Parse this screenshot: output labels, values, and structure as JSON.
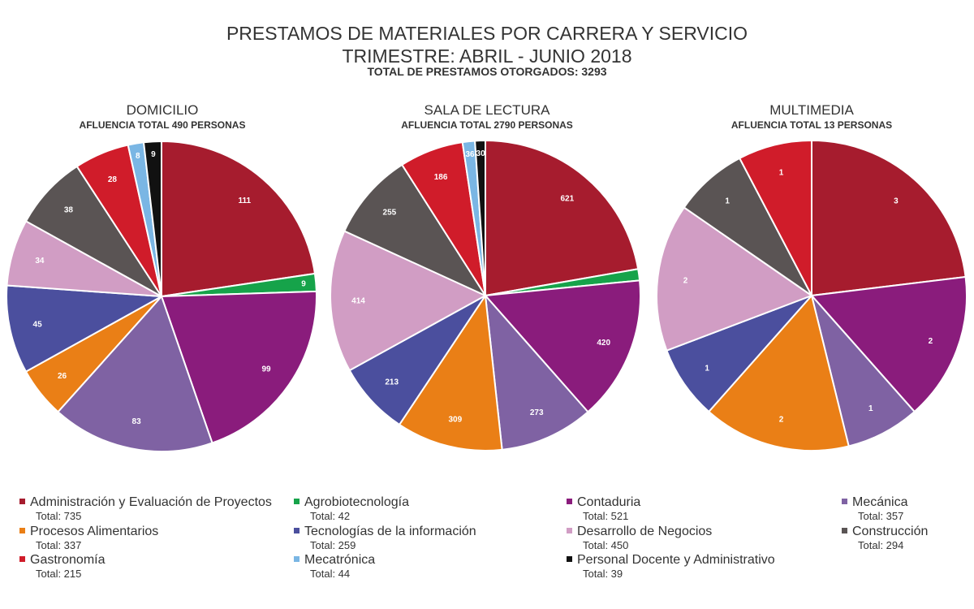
{
  "title": {
    "line1": "PRESTAMOS DE MATERIALES POR CARRERA Y SERVICIO",
    "line2": "TRIMESTRE: ABRIL - JUNIO 2018",
    "line3": "TOTAL DE PRESTAMOS OTORGADOS: 3293"
  },
  "legend": {
    "total_prefix": "Total: ",
    "items": [
      {
        "name": "Administración y Evaluación de Proyectos",
        "color": "#a61c2e",
        "total": "735"
      },
      {
        "name": "Agrobiotecnología",
        "color": "#16a34a",
        "total": "42"
      },
      {
        "name": "Contaduria",
        "color": "#8a1c7c",
        "total": "521"
      },
      {
        "name": "Mecánica",
        "color": "#7f62a3",
        "total": "357"
      },
      {
        "name": "Procesos Alimentarios",
        "color": "#ea7f16",
        "total": "337"
      },
      {
        "name": "Tecnologías de la información",
        "color": "#4b4f9e",
        "total": "259"
      },
      {
        "name": "Desarrollo de Negocios",
        "color": "#d19dc4",
        "total": "450"
      },
      {
        "name": "Construcción",
        "color": "#5a5454",
        "total": "294"
      },
      {
        "name": "Gastronomía",
        "color": "#d01c2a",
        "total": "215"
      },
      {
        "name": "Mecatrónica",
        "color": "#7ab6e4",
        "total": "44"
      },
      {
        "name": "Personal Docente y Administrativo",
        "color": "#111111",
        "total": "39"
      }
    ]
  },
  "chart_data": [
    {
      "type": "pie",
      "title": "DOMICILIO",
      "subtitle": "AFLUENCIA TOTAL 490 PERSONAS",
      "categories": [
        "Administración y Evaluación de Proyectos",
        "Agrobiotecnología",
        "Contaduria",
        "Mecánica",
        "Procesos Alimentarios",
        "Tecnologías de la información",
        "Desarrollo de Negocios",
        "Construcción",
        "Gastronomía",
        "Mecatrónica",
        "Personal Docente y Administrativo"
      ],
      "values": [
        111,
        9,
        99,
        83,
        26,
        45,
        34,
        38,
        28,
        8,
        9
      ],
      "labels": [
        "111",
        "9",
        "99",
        "83",
        "26",
        "45",
        "34",
        "38",
        "28",
        "8",
        "9"
      ]
    },
    {
      "type": "pie",
      "title": "SALA DE LECTURA",
      "subtitle": "AFLUENCIA TOTAL 2790 PERSONAS",
      "categories": [
        "Administración y Evaluación de Proyectos",
        "Agrobiotecnología",
        "Contaduria",
        "Mecánica",
        "Procesos Alimentarios",
        "Tecnologías de la información",
        "Desarrollo de Negocios",
        "Construcción",
        "Gastronomía",
        "Mecatrónica",
        "Personal Docente y Administrativo"
      ],
      "values": [
        621,
        33,
        420,
        273,
        309,
        213,
        414,
        255,
        186,
        36,
        30
      ],
      "labels": [
        "621",
        "",
        "420",
        "273",
        "309",
        "213",
        "414",
        "255",
        "186",
        "36",
        "30"
      ]
    },
    {
      "type": "pie",
      "title": "MULTIMEDIA",
      "subtitle": "AFLUENCIA TOTAL 13 PERSONAS",
      "categories": [
        "Administración y Evaluación de Proyectos",
        "Contaduria",
        "Mecánica",
        "Procesos Alimentarios",
        "Tecnologías de la información",
        "Desarrollo de Negocios",
        "Construcción",
        "Gastronomía"
      ],
      "colors": [
        "#a61c2e",
        "#8a1c7c",
        "#7f62a3",
        "#ea7f16",
        "#4b4f9e",
        "#d19dc4",
        "#5a5454",
        "#d01c2a"
      ],
      "values": [
        3,
        2,
        1,
        2,
        1,
        2,
        1,
        1
      ],
      "labels": [
        "3",
        "2",
        "1",
        "2",
        "1",
        "2",
        "1",
        "1"
      ]
    }
  ]
}
